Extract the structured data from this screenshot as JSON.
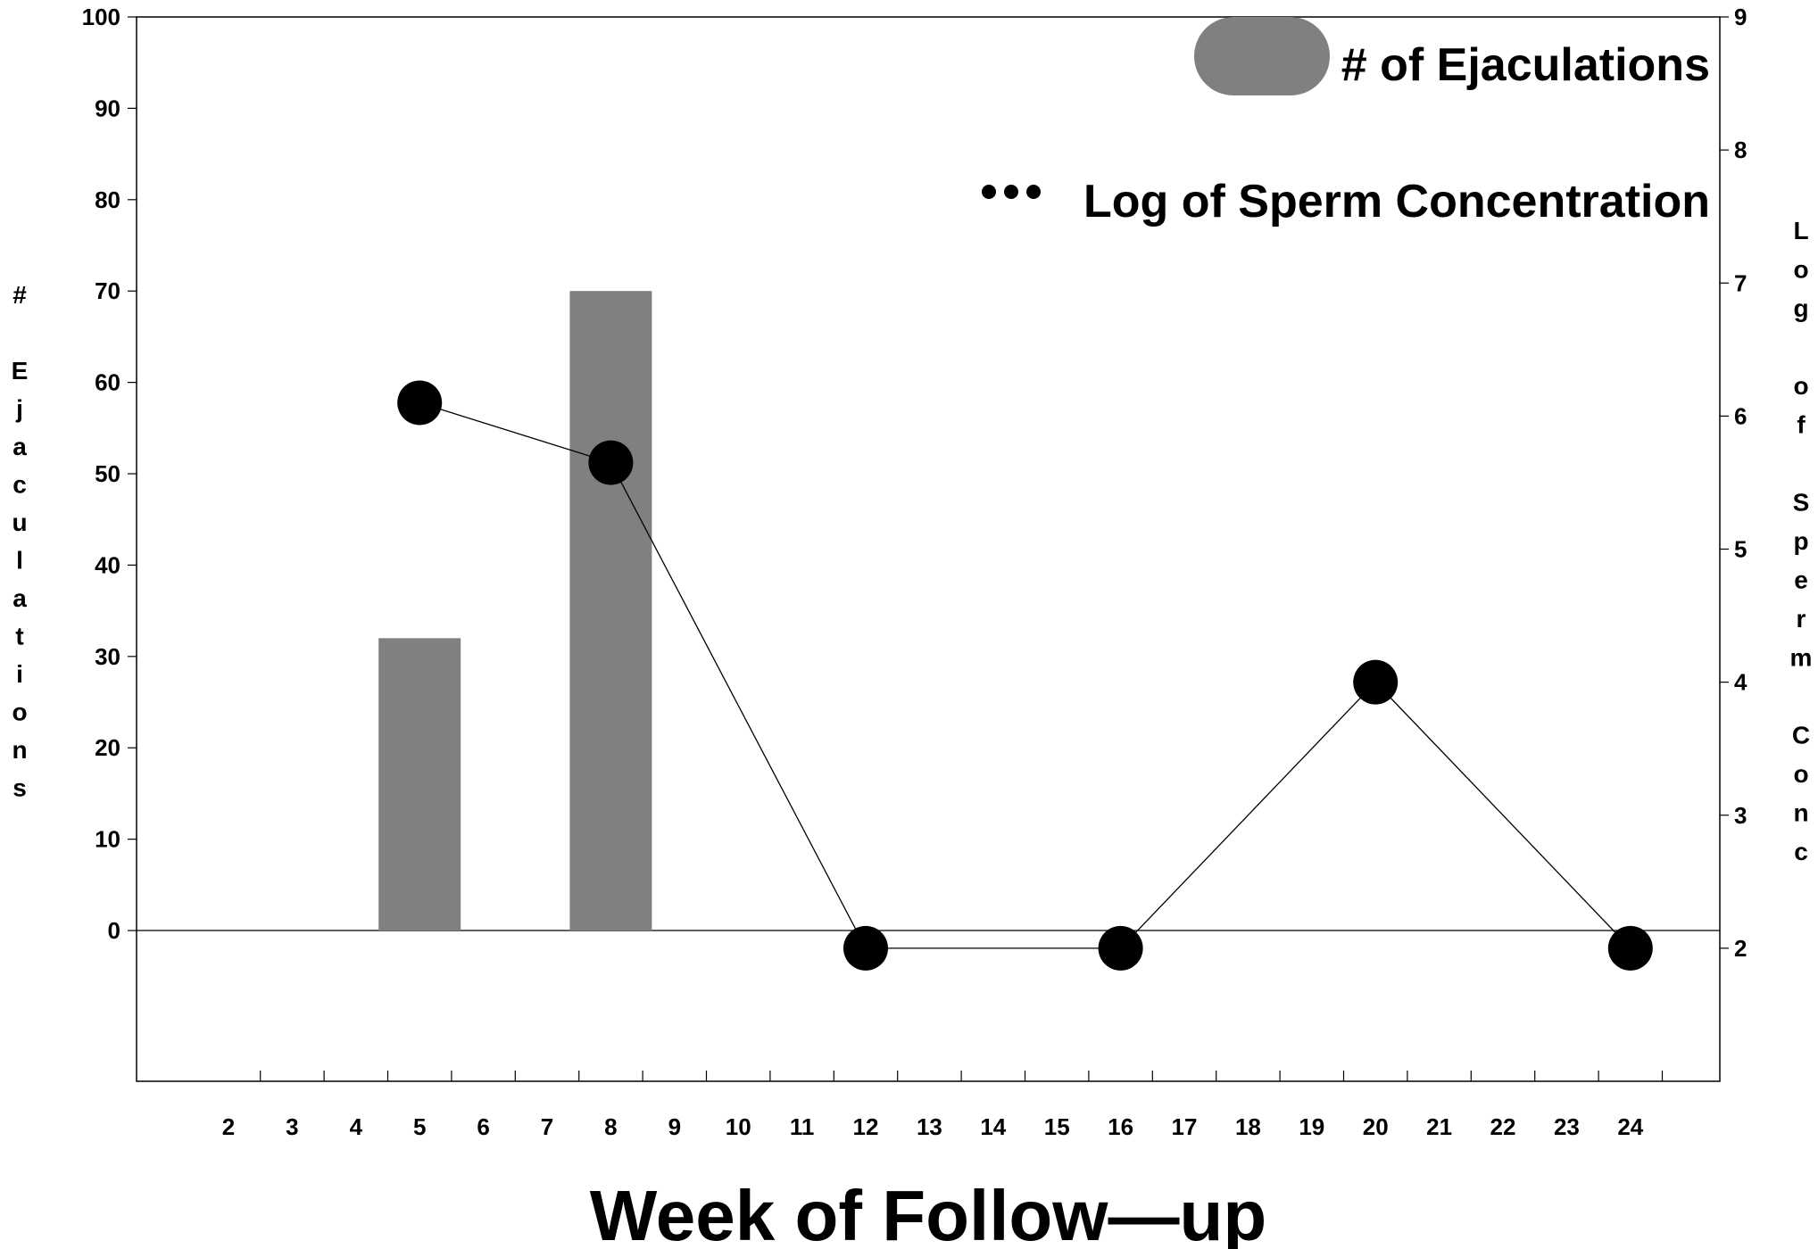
{
  "chart_data": {
    "type": "bar",
    "x_categories": [
      "2",
      "3",
      "4",
      "5",
      "6",
      "7",
      "8",
      "9",
      "10",
      "11",
      "12",
      "13",
      "14",
      "15",
      "16",
      "17",
      "18",
      "19",
      "20",
      "21",
      "22",
      "23",
      "24"
    ],
    "xlabel": "Week of Follow—up",
    "y_left": {
      "label": "# Ejaculations",
      "ticks": [
        "0",
        "10",
        "20",
        "30",
        "40",
        "50",
        "60",
        "70",
        "80",
        "90",
        "100"
      ],
      "range": [
        -16.5,
        100
      ]
    },
    "y_right": {
      "label": "Log of Sperm Conc",
      "ticks": [
        "2",
        "3",
        "4",
        "5",
        "6",
        "7",
        "8",
        "9"
      ],
      "range": [
        1.0,
        9
      ]
    },
    "series": [
      {
        "name": "# of Ejaculations",
        "kind": "bar",
        "axis": "left",
        "color": "#808080",
        "x": [
          "5",
          "8"
        ],
        "values": [
          32,
          70
        ]
      },
      {
        "name": "Log of Sperm Concentration",
        "kind": "line-markers",
        "axis": "right",
        "color": "#000000",
        "x": [
          "5",
          "8",
          "12",
          "16",
          "20",
          "24"
        ],
        "values": [
          6.1,
          5.65,
          2.0,
          2.0,
          4.0,
          2.0
        ]
      }
    ],
    "legend": {
      "position": "top-right",
      "items": [
        "# of Ejaculations",
        "Log of Sperm Concentration"
      ]
    },
    "grid": false
  }
}
